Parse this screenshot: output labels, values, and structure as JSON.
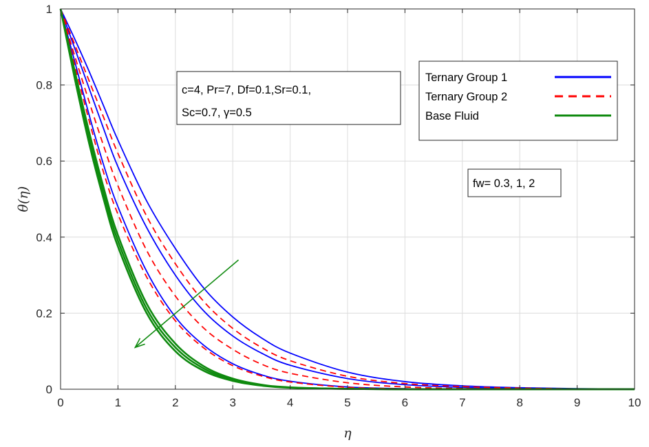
{
  "chart_data": {
    "type": "line",
    "title": "",
    "xlabel": "η",
    "ylabel": "θ(η)",
    "xlim": [
      0,
      10
    ],
    "ylim": [
      0,
      1
    ],
    "xticks": [
      "0",
      "1",
      "2",
      "3",
      "4",
      "5",
      "6",
      "7",
      "8",
      "9",
      "10"
    ],
    "yticks": [
      "0",
      "0.2",
      "0.4",
      "0.6",
      "0.8",
      "1"
    ],
    "grid": true,
    "legend_position": "top-right",
    "legend": [
      {
        "name": "Ternary Group 1",
        "color": "#0000ff",
        "dash": "solid"
      },
      {
        "name": "Ternary Group 2",
        "color": "#ff0000",
        "dash": "dashed"
      },
      {
        "name": "Base Fluid",
        "color": "#0f8a0f",
        "dash": "solid"
      }
    ],
    "parameter_lines": [
      "c=4, Pr=7, Df=0.1,Sr=0.1,",
      "Sc=0.7, γ=0.5"
    ],
    "fw_label": "fw= 0.3, 1, 2",
    "arrow": {
      "from": [
        3.1,
        0.34
      ],
      "to": [
        1.3,
        0.11
      ],
      "color": "#0f8a0f"
    },
    "x": [
      0,
      0.25,
      0.5,
      0.75,
      1,
      1.5,
      2,
      2.5,
      3,
      3.5,
      4,
      5,
      6,
      7,
      8,
      9,
      10
    ],
    "series": [
      {
        "group": "Ternary Group 1",
        "fw": "0.3",
        "color": "#0000ff",
        "dash": "solid",
        "values": [
          1,
          0.92,
          0.835,
          0.745,
          0.655,
          0.495,
          0.37,
          0.265,
          0.19,
          0.135,
          0.095,
          0.045,
          0.02,
          0.009,
          0.004,
          0.0015,
          0.0005
        ]
      },
      {
        "group": "Ternary Group 1",
        "fw": "1",
        "color": "#0000ff",
        "dash": "solid",
        "values": [
          1,
          0.895,
          0.79,
          0.685,
          0.585,
          0.425,
          0.3,
          0.205,
          0.14,
          0.095,
          0.063,
          0.028,
          0.012,
          0.005,
          0.002,
          0.0008,
          0.0003
        ]
      },
      {
        "group": "Ternary Group 1",
        "fw": "2",
        "color": "#0000ff",
        "dash": "solid",
        "values": [
          1,
          0.86,
          0.72,
          0.59,
          0.48,
          0.31,
          0.19,
          0.115,
          0.067,
          0.038,
          0.021,
          0.006,
          0.0015,
          0.0004,
          0.0001,
          0,
          0
        ]
      },
      {
        "group": "Ternary Group 2",
        "fw": "0.3",
        "color": "#ff0000",
        "dash": "dashed",
        "values": [
          1,
          0.905,
          0.81,
          0.715,
          0.62,
          0.455,
          0.33,
          0.23,
          0.16,
          0.11,
          0.075,
          0.034,
          0.015,
          0.007,
          0.003,
          0.001,
          0.0004
        ]
      },
      {
        "group": "Ternary Group 2",
        "fw": "1",
        "color": "#ff0000",
        "dash": "dashed",
        "values": [
          1,
          0.875,
          0.755,
          0.64,
          0.535,
          0.365,
          0.245,
          0.16,
          0.105,
          0.066,
          0.042,
          0.017,
          0.006,
          0.002,
          0.0008,
          0.0002,
          0
        ]
      },
      {
        "group": "Ternary Group 2",
        "fw": "2",
        "color": "#ff0000",
        "dash": "dashed",
        "values": [
          1,
          0.85,
          0.705,
          0.57,
          0.46,
          0.295,
          0.18,
          0.108,
          0.062,
          0.035,
          0.019,
          0.005,
          0.0012,
          0.0003,
          0,
          0,
          0
        ]
      },
      {
        "group": "Base Fluid",
        "fw": "0.3",
        "color": "#0f8a0f",
        "dash": "solid",
        "values": [
          1,
          0.835,
          0.675,
          0.53,
          0.405,
          0.225,
          0.12,
          0.06,
          0.028,
          0.012,
          0.005,
          0.001,
          0,
          0,
          0,
          0,
          0
        ]
      },
      {
        "group": "Base Fluid",
        "fw": "1",
        "color": "#0f8a0f",
        "dash": "solid",
        "values": [
          1,
          0.825,
          0.66,
          0.515,
          0.39,
          0.212,
          0.11,
          0.054,
          0.025,
          0.011,
          0.0045,
          0.001,
          0,
          0,
          0,
          0,
          0
        ]
      },
      {
        "group": "Base Fluid",
        "fw": "2",
        "color": "#0f8a0f",
        "dash": "solid",
        "values": [
          1,
          0.815,
          0.645,
          0.5,
          0.375,
          0.2,
          0.1,
          0.048,
          0.022,
          0.0095,
          0.004,
          0.0008,
          0,
          0,
          0,
          0,
          0
        ]
      }
    ]
  }
}
